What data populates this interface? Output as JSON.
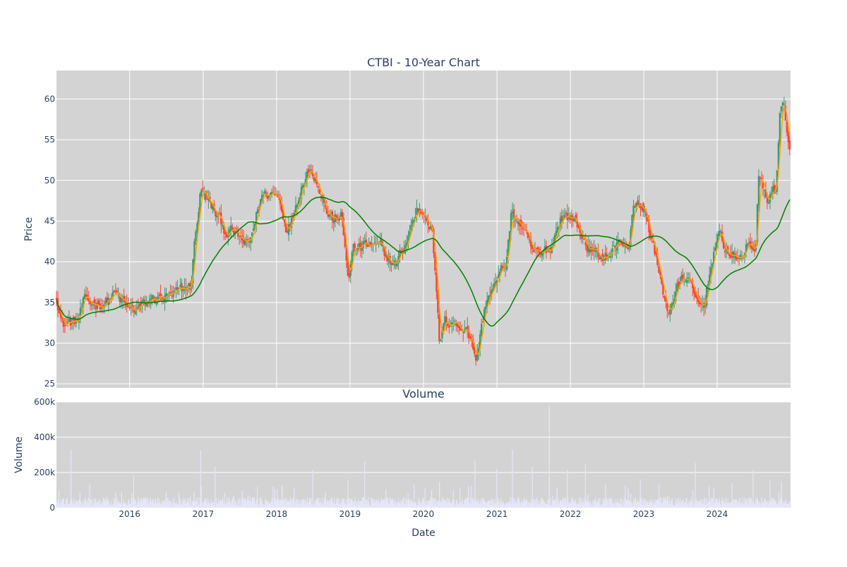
{
  "chart_data": [
    {
      "type": "candlestick",
      "title": "CTBI - 10-Year Chart",
      "ylabel": "Price",
      "ylim": [
        24.5,
        63.5
      ],
      "yticks": [
        25,
        30,
        35,
        40,
        45,
        50,
        55,
        60
      ],
      "x_range": [
        "2015-01-02",
        "2024-12-31"
      ],
      "grid": true,
      "legend": "none",
      "colors": {
        "up": "#3d9970",
        "down": "#ff4136",
        "ma_short": "#ffa500",
        "ma_long": "#008000",
        "plot_bg": "#d3d3d3",
        "grid": "#ffffff"
      },
      "price_keypoints": [
        [
          "2015-01-02",
          36.0
        ],
        [
          "2015-02-01",
          32.2
        ],
        [
          "2015-03-01",
          32.5
        ],
        [
          "2015-04-15",
          32.5
        ],
        [
          "2015-05-15",
          34.8
        ],
        [
          "2015-07-01",
          35.0
        ],
        [
          "2015-09-01",
          35.0
        ],
        [
          "2015-10-15",
          36.0
        ],
        [
          "2016-01-01",
          34.0
        ],
        [
          "2016-02-15",
          34.2
        ],
        [
          "2016-05-01",
          35.5
        ],
        [
          "2016-08-01",
          35.5
        ],
        [
          "2016-10-15",
          37.0
        ],
        [
          "2016-11-01",
          36.8
        ],
        [
          "2016-11-15",
          41.5
        ],
        [
          "2016-12-20",
          49.0
        ],
        [
          "2017-01-20",
          47.5
        ],
        [
          "2017-03-01",
          46.0
        ],
        [
          "2017-04-15",
          44.0
        ],
        [
          "2017-06-01",
          43.5
        ],
        [
          "2017-07-15",
          42.5
        ],
        [
          "2017-08-15",
          41.8
        ],
        [
          "2017-10-15",
          48.0
        ],
        [
          "2017-12-01",
          48.5
        ],
        [
          "2018-01-15",
          48.0
        ],
        [
          "2018-02-15",
          44.5
        ],
        [
          "2018-03-15",
          45.0
        ],
        [
          "2018-04-15",
          48.0
        ],
        [
          "2018-06-01",
          51.5
        ],
        [
          "2018-07-15",
          50.5
        ],
        [
          "2018-08-15",
          48.5
        ],
        [
          "2018-09-10",
          46.0
        ],
        [
          "2018-10-15",
          45.0
        ],
        [
          "2018-11-15",
          46.0
        ],
        [
          "2018-12-24",
          38.0
        ],
        [
          "2019-01-15",
          41.5
        ],
        [
          "2019-04-01",
          42.0
        ],
        [
          "2019-06-01",
          41.5
        ],
        [
          "2019-08-15",
          39.5
        ],
        [
          "2019-10-01",
          42.0
        ],
        [
          "2019-12-01",
          46.5
        ],
        [
          "2020-01-15",
          46.0
        ],
        [
          "2020-02-15",
          44.0
        ],
        [
          "2020-03-20",
          30.0
        ],
        [
          "2020-04-15",
          32.5
        ],
        [
          "2020-06-01",
          33.0
        ],
        [
          "2020-07-01",
          31.5
        ],
        [
          "2020-08-01",
          32.5
        ],
        [
          "2020-09-20",
          28.0
        ],
        [
          "2020-11-10",
          35.5
        ],
        [
          "2021-01-01",
          37.5
        ],
        [
          "2021-02-15",
          40.0
        ],
        [
          "2021-03-15",
          46.0
        ],
        [
          "2021-05-01",
          44.5
        ],
        [
          "2021-06-15",
          41.5
        ],
        [
          "2021-08-01",
          40.5
        ],
        [
          "2021-10-01",
          42.0
        ],
        [
          "2021-11-10",
          45.5
        ],
        [
          "2022-01-15",
          45.5
        ],
        [
          "2022-03-01",
          43.0
        ],
        [
          "2022-05-15",
          40.5
        ],
        [
          "2022-07-15",
          41.0
        ],
        [
          "2022-09-15",
          42.5
        ],
        [
          "2022-10-15",
          42.0
        ],
        [
          "2022-11-15",
          47.0
        ],
        [
          "2023-01-01",
          46.5
        ],
        [
          "2023-02-15",
          42.5
        ],
        [
          "2023-03-20",
          38.0
        ],
        [
          "2023-05-01",
          34.0
        ],
        [
          "2023-06-15",
          36.5
        ],
        [
          "2023-08-01",
          38.5
        ],
        [
          "2023-09-15",
          35.0
        ],
        [
          "2023-10-25",
          34.5
        ],
        [
          "2023-12-15",
          41.5
        ],
        [
          "2024-01-15",
          43.0
        ],
        [
          "2024-03-01",
          41.0
        ],
        [
          "2024-04-15",
          40.0
        ],
        [
          "2024-06-01",
          42.0
        ],
        [
          "2024-07-10",
          41.8
        ],
        [
          "2024-07-25",
          50.5
        ],
        [
          "2024-09-01",
          47.5
        ],
        [
          "2024-10-01",
          49.0
        ],
        [
          "2024-10-20",
          48.0
        ],
        [
          "2024-11-08",
          59.0
        ],
        [
          "2024-11-25",
          59.5
        ],
        [
          "2024-12-10",
          57.0
        ],
        [
          "2024-12-31",
          53.5
        ]
      ]
    },
    {
      "type": "bar",
      "title": "Volume",
      "xlabel": "Date",
      "ylabel": "Volume",
      "ylim": [
        0,
        600000
      ],
      "yticks": [
        0,
        200000,
        400000,
        600000
      ],
      "ytick_labels": [
        "0",
        "200k",
        "400k",
        "600k"
      ],
      "xticks": [
        "2016-01-01",
        "2017-01-01",
        "2018-01-01",
        "2019-01-01",
        "2020-01-01",
        "2021-01-01",
        "2022-01-01",
        "2023-01-01",
        "2024-01-01"
      ],
      "xtick_labels": [
        "2016",
        "2017",
        "2018",
        "2019",
        "2020",
        "2021",
        "2022",
        "2023",
        "2024"
      ],
      "colors": {
        "bar": "#e6e6fa",
        "plot_bg": "#d3d3d3"
      },
      "typical_volume": 38000,
      "spikes": [
        [
          "2015-03-15",
          330000
        ],
        [
          "2015-06-15",
          135000
        ],
        [
          "2016-01-20",
          185000
        ],
        [
          "2016-06-30",
          90000
        ],
        [
          "2016-12-20",
          325000
        ],
        [
          "2017-03-01",
          235000
        ],
        [
          "2017-12-15",
          120000
        ],
        [
          "2018-06-29",
          215000
        ],
        [
          "2018-12-20",
          155000
        ],
        [
          "2019-03-15",
          265000
        ],
        [
          "2019-06-28",
          105000
        ],
        [
          "2020-03-20",
          150000
        ],
        [
          "2020-06-30",
          110000
        ],
        [
          "2020-09-15",
          270000
        ],
        [
          "2020-12-31",
          220000
        ],
        [
          "2021-03-19",
          330000
        ],
        [
          "2021-06-25",
          230000
        ],
        [
          "2021-09-17",
          578000
        ],
        [
          "2021-12-17",
          215000
        ],
        [
          "2022-03-18",
          250000
        ],
        [
          "2022-06-24",
          135000
        ],
        [
          "2022-12-16",
          160000
        ],
        [
          "2023-03-17",
          135000
        ],
        [
          "2023-09-15",
          255000
        ],
        [
          "2023-12-15",
          110000
        ],
        [
          "2024-03-15",
          140000
        ],
        [
          "2024-06-28",
          215000
        ],
        [
          "2024-09-20",
          155000
        ],
        [
          "2024-11-15",
          150000
        ]
      ]
    }
  ]
}
